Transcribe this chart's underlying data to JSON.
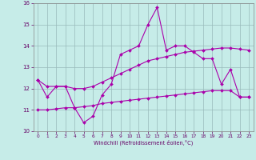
{
  "xlabel": "Windchill (Refroidissement éolien,°C)",
  "background_color": "#c6ece8",
  "line_color": "#aa00aa",
  "grid_color": "#99bbbb",
  "ylim": [
    10,
    16
  ],
  "xlim": [
    -0.5,
    23.5
  ],
  "yticks": [
    10,
    11,
    12,
    13,
    14,
    15,
    16
  ],
  "xticks": [
    0,
    1,
    2,
    3,
    4,
    5,
    6,
    7,
    8,
    9,
    10,
    11,
    12,
    13,
    14,
    15,
    16,
    17,
    18,
    19,
    20,
    21,
    22,
    23
  ],
  "hours": [
    0,
    1,
    2,
    3,
    4,
    5,
    6,
    7,
    8,
    9,
    10,
    11,
    12,
    13,
    14,
    15,
    16,
    17,
    18,
    19,
    20,
    21,
    22,
    23
  ],
  "line1": [
    12.4,
    11.6,
    12.1,
    12.1,
    11.1,
    10.4,
    10.7,
    11.7,
    12.2,
    13.6,
    13.8,
    14.0,
    15.0,
    15.8,
    13.8,
    14.0,
    14.0,
    13.7,
    13.4,
    13.4,
    12.2,
    12.9,
    11.6,
    11.6
  ],
  "line2": [
    12.4,
    12.1,
    12.1,
    12.1,
    12.0,
    12.0,
    12.1,
    12.3,
    12.5,
    12.7,
    12.9,
    13.1,
    13.3,
    13.4,
    13.5,
    13.6,
    13.7,
    13.75,
    13.8,
    13.85,
    13.9,
    13.9,
    13.85,
    13.8
  ],
  "line3": [
    11.0,
    11.0,
    11.05,
    11.1,
    11.1,
    11.15,
    11.2,
    11.3,
    11.35,
    11.4,
    11.45,
    11.5,
    11.55,
    11.6,
    11.65,
    11.7,
    11.75,
    11.8,
    11.85,
    11.9,
    11.9,
    11.9,
    11.6,
    11.6
  ]
}
